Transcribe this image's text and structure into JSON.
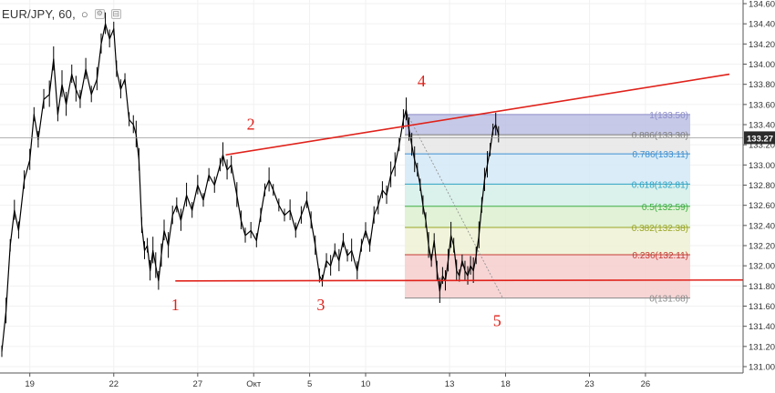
{
  "header": {
    "symbol": "EUR/JPY, 60,",
    "status_dot": "○",
    "icons": [
      "settings-icon",
      "collapse-icon"
    ]
  },
  "colors": {
    "price": "#000000",
    "annotation": "#e0221b",
    "price_tag_bg": "#2b2b2b",
    "price_tag_text": "#ffffff"
  },
  "chart_data": {
    "type": "line",
    "title": "",
    "xlabel": "",
    "ylabel": "",
    "ylim": [
      130.9,
      134.6
    ],
    "y_ticks": [
      "131.00",
      "131.20",
      "131.40",
      "131.60",
      "131.80",
      "132.00",
      "132.20",
      "132.40",
      "132.60",
      "132.80",
      "133.00",
      "133.20",
      "133.40",
      "133.60",
      "133.80",
      "134.00",
      "134.20",
      "134.40",
      "134.60"
    ],
    "x_ticks": [
      {
        "label": "19",
        "t": 1
      },
      {
        "label": "22",
        "t": 4
      },
      {
        "label": "27",
        "t": 7
      },
      {
        "label": "Окт",
        "t": 9
      },
      {
        "label": "5",
        "t": 11
      },
      {
        "label": "10",
        "t": 13
      },
      {
        "label": "13",
        "t": 16
      },
      {
        "label": "18",
        "t": 18
      },
      {
        "label": "23",
        "t": 21
      },
      {
        "label": "26",
        "t": 23
      }
    ],
    "t_range": [
      0,
      26
    ],
    "current_price": "133.27",
    "price_series": [
      [
        0.0,
        131.15
      ],
      [
        0.15,
        131.55
      ],
      [
        0.3,
        132.2
      ],
      [
        0.45,
        132.55
      ],
      [
        0.6,
        132.35
      ],
      [
        0.8,
        132.85
      ],
      [
        1.0,
        133.05
      ],
      [
        1.15,
        133.5
      ],
      [
        1.3,
        133.25
      ],
      [
        1.5,
        133.65
      ],
      [
        1.7,
        133.7
      ],
      [
        1.85,
        134.05
      ],
      [
        2.0,
        133.5
      ],
      [
        2.15,
        133.8
      ],
      [
        2.3,
        133.6
      ],
      [
        2.5,
        133.9
      ],
      [
        2.65,
        133.75
      ],
      [
        2.8,
        133.65
      ],
      [
        3.0,
        133.95
      ],
      [
        3.2,
        133.7
      ],
      [
        3.4,
        133.85
      ],
      [
        3.55,
        134.2
      ],
      [
        3.7,
        134.4
      ],
      [
        3.85,
        134.25
      ],
      [
        4.0,
        134.35
      ],
      [
        4.1,
        133.95
      ],
      [
        4.25,
        133.75
      ],
      [
        4.4,
        133.85
      ],
      [
        4.55,
        133.45
      ],
      [
        4.7,
        133.4
      ],
      [
        4.8,
        133.3
      ],
      [
        4.9,
        133.05
      ],
      [
        5.0,
        132.4
      ],
      [
        5.1,
        132.15
      ],
      [
        5.2,
        132.2
      ],
      [
        5.3,
        131.95
      ],
      [
        5.4,
        132.15
      ],
      [
        5.5,
        132.0
      ],
      [
        5.6,
        131.85
      ],
      [
        5.7,
        132.1
      ],
      [
        5.8,
        132.35
      ],
      [
        5.95,
        132.2
      ],
      [
        6.1,
        132.5
      ],
      [
        6.25,
        132.6
      ],
      [
        6.4,
        132.45
      ],
      [
        6.6,
        132.7
      ],
      [
        6.8,
        132.55
      ],
      [
        7.0,
        132.8
      ],
      [
        7.2,
        132.65
      ],
      [
        7.4,
        132.9
      ],
      [
        7.6,
        132.8
      ],
      [
        7.8,
        133.0
      ],
      [
        7.9,
        133.1
      ],
      [
        8.05,
        132.95
      ],
      [
        8.2,
        133.0
      ],
      [
        8.4,
        132.7
      ],
      [
        8.55,
        132.45
      ],
      [
        8.7,
        132.3
      ],
      [
        8.9,
        132.35
      ],
      [
        9.1,
        132.25
      ],
      [
        9.25,
        132.5
      ],
      [
        9.4,
        132.75
      ],
      [
        9.55,
        132.85
      ],
      [
        9.7,
        132.75
      ],
      [
        9.9,
        132.6
      ],
      [
        10.1,
        132.5
      ],
      [
        10.3,
        132.55
      ],
      [
        10.5,
        132.35
      ],
      [
        10.7,
        132.5
      ],
      [
        10.9,
        132.65
      ],
      [
        11.05,
        132.45
      ],
      [
        11.2,
        132.2
      ],
      [
        11.35,
        131.9
      ],
      [
        11.45,
        131.85
      ],
      [
        11.6,
        132.05
      ],
      [
        11.75,
        132.0
      ],
      [
        11.9,
        132.15
      ],
      [
        12.05,
        132.05
      ],
      [
        12.2,
        132.25
      ],
      [
        12.35,
        132.1
      ],
      [
        12.5,
        132.15
      ],
      [
        12.7,
        131.95
      ],
      [
        12.85,
        132.2
      ],
      [
        13.0,
        132.35
      ],
      [
        13.15,
        132.2
      ],
      [
        13.3,
        132.5
      ],
      [
        13.45,
        132.6
      ],
      [
        13.6,
        132.75
      ],
      [
        13.75,
        132.7
      ],
      [
        13.9,
        132.9
      ],
      [
        14.05,
        133.0
      ],
      [
        14.2,
        133.2
      ],
      [
        14.35,
        133.45
      ],
      [
        14.45,
        133.55
      ],
      [
        14.55,
        133.35
      ],
      [
        14.65,
        133.2
      ],
      [
        14.75,
        133.05
      ],
      [
        14.85,
        132.95
      ],
      [
        14.95,
        132.8
      ],
      [
        15.05,
        132.6
      ],
      [
        15.15,
        132.45
      ],
      [
        15.25,
        132.2
      ],
      [
        15.35,
        132.05
      ],
      [
        15.45,
        132.25
      ],
      [
        15.55,
        131.95
      ],
      [
        15.65,
        131.75
      ],
      [
        15.75,
        131.9
      ],
      [
        15.85,
        131.85
      ],
      [
        15.95,
        132.05
      ],
      [
        16.05,
        132.3
      ],
      [
        16.15,
        132.2
      ],
      [
        16.25,
        131.95
      ],
      [
        16.35,
        131.9
      ],
      [
        16.45,
        132.05
      ],
      [
        16.55,
        131.95
      ],
      [
        16.65,
        131.9
      ],
      [
        16.75,
        132.0
      ],
      [
        16.85,
        131.95
      ],
      [
        16.95,
        132.1
      ],
      [
        17.05,
        132.3
      ],
      [
        17.15,
        132.6
      ],
      [
        17.25,
        132.85
      ],
      [
        17.35,
        133.0
      ],
      [
        17.45,
        133.15
      ],
      [
        17.55,
        133.35
      ],
      [
        17.65,
        133.4
      ],
      [
        17.75,
        133.3
      ]
    ],
    "series": [
      {
        "name": "Fibonacci retracement",
        "levels": [
          {
            "ratio": "1",
            "label": "1(133.50)",
            "price": 133.5,
            "color": "#8c8cc8"
          },
          {
            "ratio": "0.886",
            "label": "0.886(133.30)",
            "price": 133.3,
            "color": "#7f7f7f"
          },
          {
            "ratio": "0.786",
            "label": "0.786(133.11)",
            "price": 133.11,
            "color": "#3d8fd1"
          },
          {
            "ratio": "0.618",
            "label": "0.618(132.81)",
            "price": 132.81,
            "color": "#2fa3c4"
          },
          {
            "ratio": "0.5",
            "label": "0.5(132.59)",
            "price": 132.59,
            "color": "#3fae44"
          },
          {
            "ratio": "0.382",
            "label": "0.382(132.38)",
            "price": 132.38,
            "color": "#9aa526"
          },
          {
            "ratio": "0.236",
            "label": "0.236(132.11)",
            "price": 132.11,
            "color": "#c43b34"
          },
          {
            "ratio": "0",
            "label": "0(131.68)",
            "price": 131.68,
            "color": "#8a8a8a"
          }
        ],
        "bands": [
          {
            "from": 133.5,
            "to": 133.3,
            "fill": "#bcbfe3"
          },
          {
            "from": 133.3,
            "to": 133.11,
            "fill": "#e6e6e6"
          },
          {
            "from": 133.11,
            "to": 132.81,
            "fill": "#d4e9f6"
          },
          {
            "from": 132.81,
            "to": 132.59,
            "fill": "#d3eee9"
          },
          {
            "from": 132.59,
            "to": 132.38,
            "fill": "#dcf0cf"
          },
          {
            "from": 132.38,
            "to": 132.11,
            "fill": "#eff2d3"
          },
          {
            "from": 132.11,
            "to": 131.68,
            "fill": "#f6cece"
          }
        ],
        "t_start": 14.4,
        "t_end": 24.6
      }
    ],
    "annotations": {
      "upper_line": {
        "from": [
          8.0,
          133.1
        ],
        "to": [
          26.0,
          133.9
        ]
      },
      "lower_line": {
        "from": [
          6.2,
          131.85
        ],
        "to": [
          28.6,
          131.86
        ]
      },
      "wave_labels": [
        {
          "text": "1",
          "t": 6.2,
          "price": 131.56
        },
        {
          "text": "2",
          "t": 8.9,
          "price": 133.35
        },
        {
          "text": "3",
          "t": 11.4,
          "price": 131.56
        },
        {
          "text": "4",
          "t": 15.0,
          "price": 133.78
        },
        {
          "text": "5",
          "t": 17.7,
          "price": 131.4
        }
      ]
    }
  }
}
